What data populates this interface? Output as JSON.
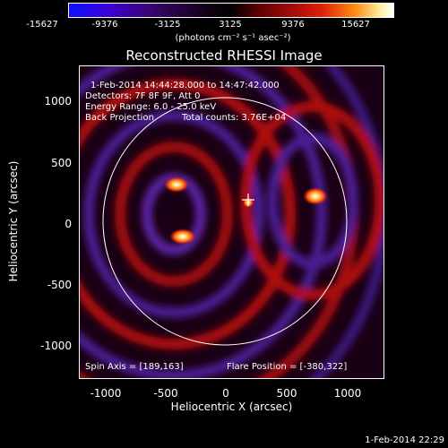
{
  "colorbar": {
    "ticks": [
      "-15627",
      "-9376",
      "-3125",
      "3125",
      "9376",
      "15627"
    ],
    "unit": "(photons cm⁻² s⁻¹ asec⁻²)"
  },
  "title": "Reconstructed RHESSI Image",
  "annotations": {
    "time_range": "1-Feb-2014 14:44:28.000 to 14:47:42.000",
    "detectors": "Detectors: 7F 8F 9F, Att 0",
    "energy": "Energy Range: 6.0 - 25.0 keV",
    "method": "Back Projection",
    "counts": "Total counts: 3.76E+04",
    "spin_axis": "Spin Axis = [189,163]",
    "flare_position": "Flare Position = [-380,322]"
  },
  "axes": {
    "xlabel": "Heliocentric X (arcsec)",
    "ylabel": "Heliocentric Y (arcsec)",
    "xticks": [
      "-1000",
      "-500",
      "0",
      "500",
      "1000"
    ],
    "yticks": [
      "1000",
      "500",
      "0",
      "-500",
      "-1000"
    ],
    "xlim": [
      -1300,
      1300
    ],
    "ylim": [
      -1300,
      1300
    ]
  },
  "footer": "1-Feb-2014 22:29"
}
